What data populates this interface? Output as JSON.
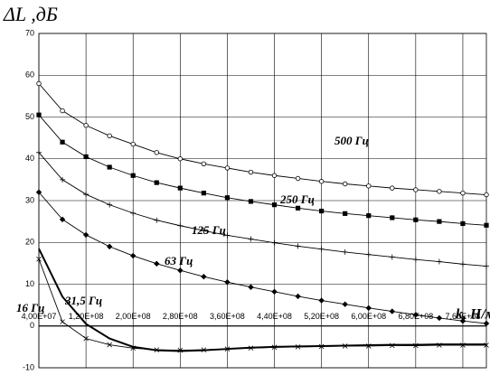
{
  "chart_data": {
    "type": "line",
    "y_label": "ΔL ,дБ",
    "x_label": "k, Н/м",
    "x": [
      40000000,
      80000000,
      120000000,
      160000000,
      200000000,
      240000000,
      280000000,
      320000000,
      360000000,
      400000000,
      440000000,
      480000000,
      520000000,
      560000000,
      600000000,
      640000000,
      680000000,
      720000000,
      760000000,
      800000000
    ],
    "series": [
      {
        "name": "500 Гц",
        "color": "#000000",
        "marker": "open-circle",
        "values": [
          58,
          51.5,
          48,
          45.5,
          43.5,
          41.5,
          40,
          38.8,
          37.8,
          36.8,
          36,
          35.3,
          34.6,
          34,
          33.5,
          33,
          32.6,
          32.2,
          31.8,
          31.4
        ]
      },
      {
        "name": "250 Гц",
        "color": "#000000",
        "marker": "square",
        "values": [
          50.5,
          44,
          40.5,
          38,
          36,
          34.3,
          33,
          31.8,
          30.7,
          29.8,
          29,
          28.2,
          27.5,
          26.9,
          26.4,
          25.9,
          25.4,
          25,
          24.5,
          24.1
        ]
      },
      {
        "name": "125 Гц",
        "color": "#000000",
        "marker": "plus",
        "values": [
          41.5,
          35,
          31.5,
          29,
          27,
          25.3,
          24,
          22.8,
          21.7,
          20.8,
          19.9,
          19.1,
          18.4,
          17.7,
          17.1,
          16.5,
          15.9,
          15.4,
          14.8,
          14.3
        ]
      },
      {
        "name": "63 Гц",
        "color": "#000000",
        "marker": "diamond",
        "values": [
          32,
          25.5,
          21.8,
          19,
          16.8,
          14.9,
          13.3,
          11.8,
          10.5,
          9.3,
          8.2,
          7.1,
          6.1,
          5.2,
          4.3,
          3.5,
          2.7,
          1.9,
          1.2,
          0.6
        ]
      },
      {
        "name": "31,5 Гц",
        "color": "#000000",
        "marker": "none",
        "values": [
          18.5,
          7,
          0.5,
          -3,
          -5,
          -5.8,
          -6,
          -5.8,
          -5.5,
          -5.2,
          -5,
          -4.9,
          -4.8,
          -4.7,
          -4.6,
          -4.5,
          -4.5,
          -4.4,
          -4.4,
          -4.4
        ]
      },
      {
        "name": "16 Гц",
        "color": "#000000",
        "marker": "x",
        "values": [
          16,
          1,
          -3,
          -4.5,
          -5.3,
          -5.7,
          -5.8,
          -5.7,
          -5.5,
          -5.3,
          -5.1,
          -5,
          -4.9,
          -4.8,
          -4.8,
          -4.7,
          -4.7,
          -4.6,
          -4.6,
          -4.6
        ]
      }
    ],
    "xlim": [
      40000000,
      800000000
    ],
    "ylim": [
      -10,
      70
    ],
    "yticks": [
      -10,
      0,
      10,
      20,
      30,
      40,
      50,
      60,
      70
    ],
    "xticks": [
      {
        "value": 40000000,
        "label": "4,00E+07"
      },
      {
        "value": 120000000,
        "label": "1,20E+08"
      },
      {
        "value": 200000000,
        "label": "2,00E+08"
      },
      {
        "value": 280000000,
        "label": "2,80E+08"
      },
      {
        "value": 360000000,
        "label": "3,60E+08"
      },
      {
        "value": 440000000,
        "label": "4,40E+08"
      },
      {
        "value": 520000000,
        "label": "5,20E+08"
      },
      {
        "value": 600000000,
        "label": "6,00E+08"
      },
      {
        "value": 680000000,
        "label": "6,80E+08"
      },
      {
        "value": 760000000,
        "label": "7,60E+08"
      }
    ],
    "grid": true
  }
}
